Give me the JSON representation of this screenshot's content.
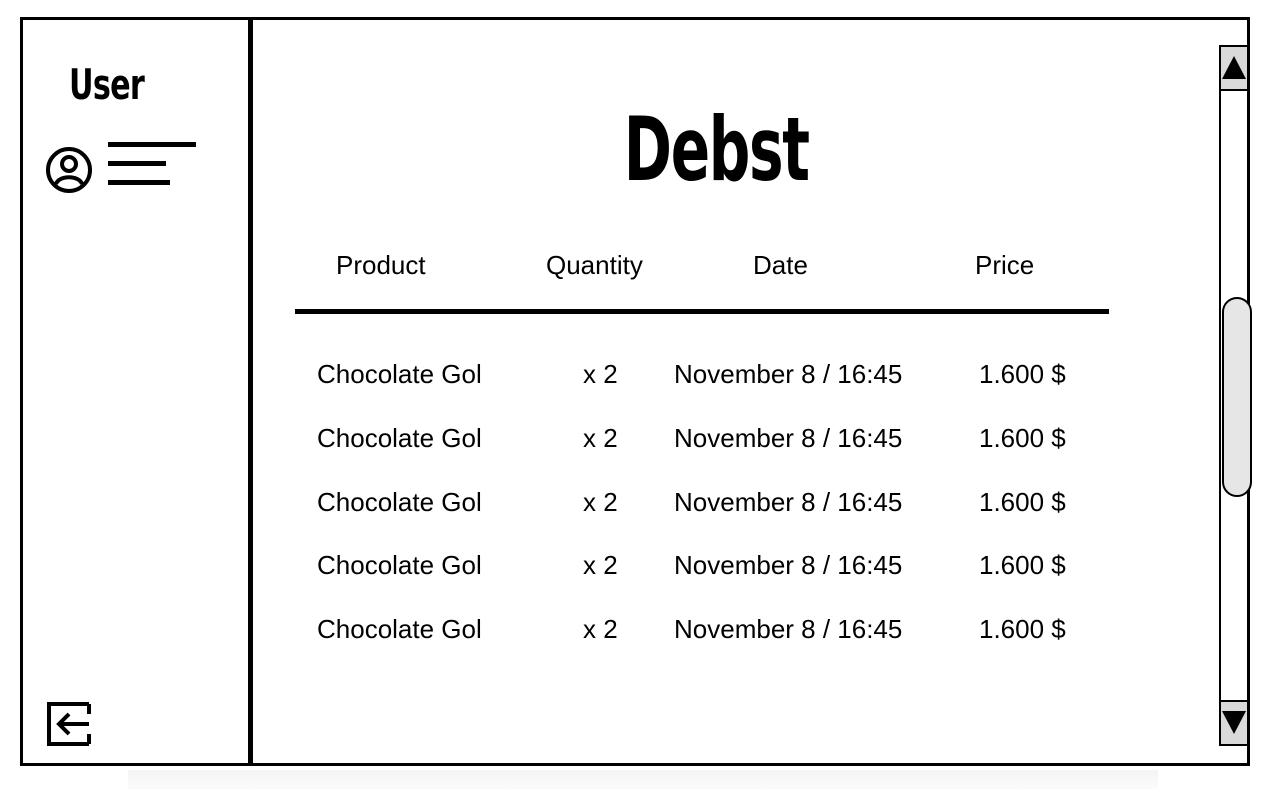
{
  "sidebar": {
    "title": "User",
    "icons": {
      "profile": "user-circle-icon",
      "menu": "menu-icon",
      "logout": "logout-icon"
    }
  },
  "main": {
    "title": "Debst",
    "columns": [
      "Product",
      "Quantity",
      "Date",
      "Price"
    ],
    "rows": [
      {
        "product": "Chocolate Gol",
        "quantity": "x 2",
        "date": "November 8 / 16:45",
        "price": "1.600 $"
      },
      {
        "product": "Chocolate Gol",
        "quantity": "x 2",
        "date": "November 8 / 16:45",
        "price": "1.600 $"
      },
      {
        "product": "Chocolate Gol",
        "quantity": "x 2",
        "date": "November 8 / 16:45",
        "price": "1.600 $"
      },
      {
        "product": "Chocolate Gol",
        "quantity": "x 2",
        "date": "November 8 / 16:45",
        "price": "1.600 $"
      },
      {
        "product": "Chocolate Gol",
        "quantity": "x 2",
        "date": "November 8 / 16:45",
        "price": "1.600 $"
      }
    ]
  },
  "scrollbar": {
    "up_icon": "triangle-up-icon",
    "down_icon": "triangle-down-icon",
    "thumb_color": "#e6e6e6",
    "button_color": "#d9d9d9"
  },
  "colors": {
    "foreground": "#000000",
    "background": "#ffffff"
  }
}
